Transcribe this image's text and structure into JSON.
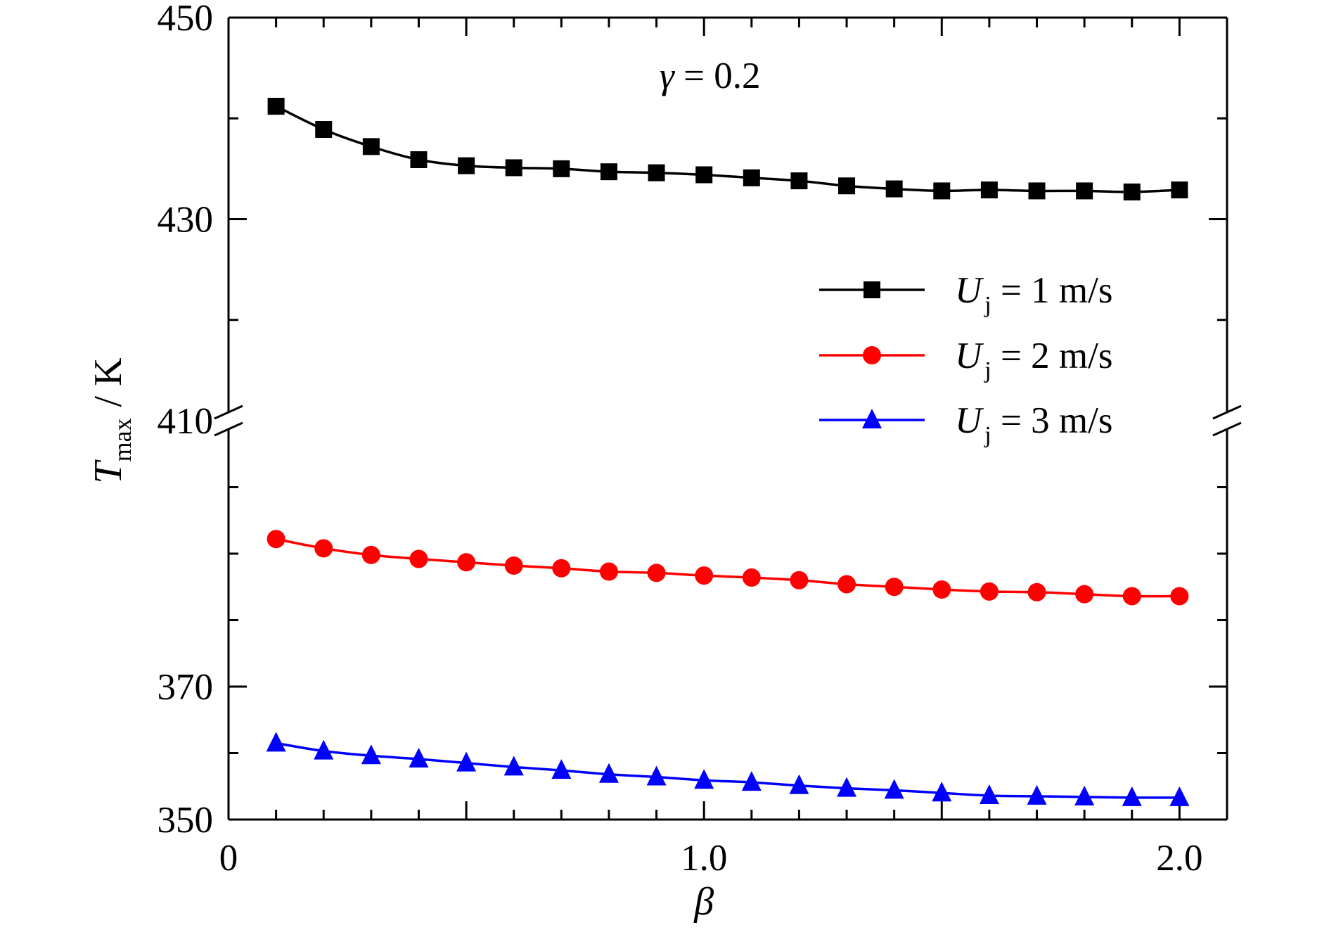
{
  "chart_data": {
    "type": "line",
    "title": "",
    "annotation": {
      "symbol": "γ",
      "text": " = 0.2"
    },
    "xlabel": {
      "main": "β"
    },
    "ylabel": {
      "main": "T",
      "subscript": "max",
      "suffix": "/ K"
    },
    "xlim": [
      0,
      2.1
    ],
    "xticks": [
      {
        "value": 0,
        "label": "0"
      },
      {
        "value": 1.0,
        "label": "1.0"
      },
      {
        "value": 2.0,
        "label": "2.0"
      }
    ],
    "y_broken_axis": {
      "lower_range": [
        350,
        410
      ],
      "upper_range": [
        410,
        450
      ],
      "lower_ticks": [
        {
          "value": 350,
          "label": "350"
        },
        {
          "value": 370,
          "label": "370"
        },
        {
          "value": 410,
          "label": "410"
        }
      ],
      "upper_ticks": [
        {
          "value": 430,
          "label": "430"
        },
        {
          "value": 450,
          "label": "450"
        }
      ]
    },
    "grid": false,
    "legend_position": "right",
    "x": [
      0.1,
      0.2,
      0.3,
      0.4,
      0.5,
      0.6,
      0.7,
      0.8,
      0.9,
      1.0,
      1.1,
      1.2,
      1.3,
      1.4,
      1.5,
      1.6,
      1.7,
      1.8,
      1.9,
      2.0
    ],
    "series": [
      {
        "name": {
          "symbol": "U",
          "subscript": "j",
          "text": " = 1 m/s"
        },
        "color": "#000000",
        "marker": "square",
        "values": [
          441.2,
          438.9,
          437.2,
          435.9,
          435.3,
          435.1,
          435.0,
          434.7,
          434.6,
          434.4,
          434.1,
          433.8,
          433.3,
          433.0,
          432.8,
          432.9,
          432.8,
          432.8,
          432.7,
          432.9
        ]
      },
      {
        "name": {
          "symbol": "U",
          "subscript": "j",
          "text": " = 2 m/s"
        },
        "color": "#ff0000",
        "marker": "circle",
        "values": [
          392.2,
          390.8,
          389.8,
          389.2,
          388.7,
          388.2,
          387.8,
          387.3,
          387.1,
          386.7,
          386.4,
          386.0,
          385.4,
          385.0,
          384.6,
          384.3,
          384.2,
          383.9,
          383.6,
          383.6
        ]
      },
      {
        "name": {
          "symbol": "U",
          "subscript": "j",
          "text": " = 3 m/s"
        },
        "color": "#0000ff",
        "marker": "triangle",
        "values": [
          361.5,
          360.3,
          359.6,
          359.1,
          358.5,
          357.9,
          357.4,
          356.8,
          356.4,
          355.9,
          355.6,
          355.1,
          354.7,
          354.4,
          354.0,
          353.6,
          353.5,
          353.4,
          353.3,
          353.3
        ]
      }
    ]
  }
}
